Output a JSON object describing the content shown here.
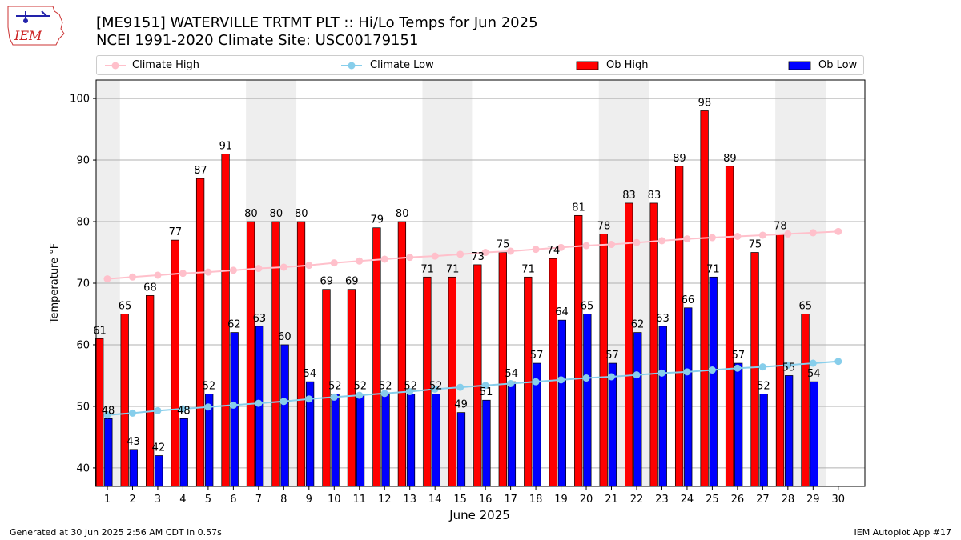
{
  "logo": {
    "text": "IEM"
  },
  "header": {
    "title_line1": "[ME9151] WATERVILLE TRTMT PLT :: Hi/Lo Temps for Jun 2025",
    "title_line2": "NCEI 1991-2020 Climate Site: USC00179151"
  },
  "legend": {
    "items": [
      {
        "label": "Climate High",
        "color": "#ffc0cb",
        "kind": "line"
      },
      {
        "label": "Climate Low",
        "color": "#87ceeb",
        "kind": "line"
      },
      {
        "label": "Ob High",
        "color": "#ff0000",
        "kind": "bar"
      },
      {
        "label": "Ob Low",
        "color": "#0000ff",
        "kind": "bar"
      }
    ],
    "placement": "top, above plot"
  },
  "chart_data": {
    "type": "bar",
    "xlabel": "June 2025",
    "ylabel": "Temperature °F",
    "ylim": [
      37,
      103
    ],
    "yticks": [
      40,
      50,
      60,
      70,
      80,
      90,
      100
    ],
    "grid": "horizontal",
    "categories": [
      "1",
      "2",
      "3",
      "4",
      "5",
      "6",
      "7",
      "8",
      "9",
      "10",
      "11",
      "12",
      "13",
      "14",
      "15",
      "16",
      "17",
      "18",
      "19",
      "20",
      "21",
      "22",
      "23",
      "24",
      "25",
      "26",
      "27",
      "28",
      "29",
      "30"
    ],
    "weekend_shading_days": [
      [
        1,
        1
      ],
      [
        7,
        8
      ],
      [
        14,
        15
      ],
      [
        21,
        22
      ],
      [
        28,
        29
      ]
    ],
    "shading_color": "#eeeeee",
    "series": [
      {
        "name": "Ob High",
        "kind": "bar",
        "color": "#ff0000",
        "values": [
          61,
          65,
          68,
          77,
          87,
          91,
          80,
          80,
          80,
          69,
          69,
          79,
          80,
          71,
          71,
          73,
          75,
          71,
          74,
          81,
          78,
          83,
          83,
          89,
          98,
          89,
          75,
          78,
          65,
          null
        ]
      },
      {
        "name": "Ob Low",
        "kind": "bar",
        "color": "#0000ff",
        "values": [
          48,
          43,
          42,
          48,
          52,
          62,
          63,
          60,
          54,
          52,
          52,
          52,
          52,
          52,
          49,
          51,
          54,
          57,
          64,
          65,
          57,
          62,
          63,
          66,
          71,
          57,
          52,
          55,
          54,
          null
        ]
      },
      {
        "name": "Climate High",
        "kind": "line",
        "color": "#ffc0cb",
        "values": [
          70.7,
          71.0,
          71.3,
          71.6,
          71.8,
          72.1,
          72.4,
          72.6,
          72.9,
          73.3,
          73.6,
          73.9,
          74.2,
          74.4,
          74.7,
          75.0,
          75.2,
          75.5,
          75.8,
          76.1,
          76.3,
          76.6,
          76.9,
          77.2,
          77.4,
          77.6,
          77.8,
          78.0,
          78.2,
          78.4
        ]
      },
      {
        "name": "Climate Low",
        "kind": "line",
        "color": "#87ceeb",
        "values": [
          48.6,
          48.9,
          49.3,
          49.6,
          49.9,
          50.2,
          50.5,
          50.8,
          51.2,
          51.5,
          51.8,
          52.1,
          52.4,
          52.8,
          53.1,
          53.4,
          53.7,
          54.0,
          54.3,
          54.6,
          54.8,
          55.1,
          55.4,
          55.6,
          55.9,
          56.2,
          56.4,
          56.7,
          57.0,
          57.3
        ]
      }
    ]
  },
  "footer": {
    "left": "Generated at 30 Jun 2025 2:56 AM CDT in 0.57s",
    "right": "IEM Autoplot App #17"
  }
}
